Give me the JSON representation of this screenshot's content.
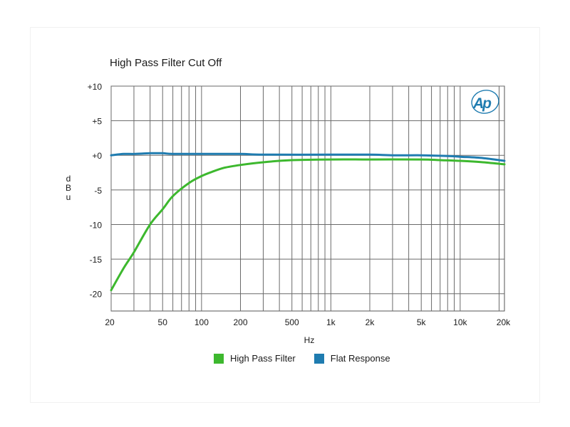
{
  "chart_data": {
    "type": "line",
    "title": "High Pass Filter Cut Off",
    "xlabel": "Hz",
    "ylabel": "dBu",
    "x_scale": "log",
    "xlim": [
      20,
      22000
    ],
    "ylim": [
      -22.5,
      10
    ],
    "x_ticks": [
      {
        "value": 20,
        "label": "20"
      },
      {
        "value": 50,
        "label": "50"
      },
      {
        "value": 100,
        "label": "100"
      },
      {
        "value": 200,
        "label": "200"
      },
      {
        "value": 500,
        "label": "500"
      },
      {
        "value": 1000,
        "label": "1k"
      },
      {
        "value": 2000,
        "label": "2k"
      },
      {
        "value": 5000,
        "label": "5k"
      },
      {
        "value": 10000,
        "label": "10k"
      },
      {
        "value": 20000,
        "label": "20k"
      }
    ],
    "y_ticks": [
      {
        "value": 10,
        "label": "+10"
      },
      {
        "value": 5,
        "label": "+5"
      },
      {
        "value": 0,
        "label": "+0"
      },
      {
        "value": -5,
        "label": "-5"
      },
      {
        "value": -10,
        "label": "-10"
      },
      {
        "value": -15,
        "label": "-15"
      },
      {
        "value": -20,
        "label": "-20"
      }
    ],
    "grid": true,
    "legend_position": "bottom",
    "series": [
      {
        "name": "High Pass Filter",
        "color": "#3db82e",
        "points": [
          [
            20,
            -19.5
          ],
          [
            25,
            -16.3
          ],
          [
            30,
            -14.0
          ],
          [
            40,
            -10.0
          ],
          [
            50,
            -7.8
          ],
          [
            60,
            -5.9
          ],
          [
            80,
            -4.0
          ],
          [
            100,
            -3.0
          ],
          [
            120,
            -2.4
          ],
          [
            150,
            -1.8
          ],
          [
            200,
            -1.4
          ],
          [
            300,
            -1.0
          ],
          [
            500,
            -0.7
          ],
          [
            1000,
            -0.6
          ],
          [
            2000,
            -0.6
          ],
          [
            5000,
            -0.6
          ],
          [
            7000,
            -0.7
          ],
          [
            10000,
            -0.8
          ],
          [
            15000,
            -1.0
          ],
          [
            22000,
            -1.3
          ]
        ]
      },
      {
        "name": "Flat Response",
        "color": "#1f7cb0",
        "points": [
          [
            20,
            0.0
          ],
          [
            25,
            0.2
          ],
          [
            30,
            0.2
          ],
          [
            40,
            0.3
          ],
          [
            50,
            0.3
          ],
          [
            60,
            0.2
          ],
          [
            100,
            0.2
          ],
          [
            200,
            0.2
          ],
          [
            300,
            0.1
          ],
          [
            1000,
            0.1
          ],
          [
            2000,
            0.1
          ],
          [
            3000,
            0.0
          ],
          [
            5000,
            0.0
          ],
          [
            8000,
            -0.1
          ],
          [
            10000,
            -0.2
          ],
          [
            15000,
            -0.4
          ],
          [
            22000,
            -0.8
          ]
        ]
      }
    ]
  },
  "logo_text": "AP",
  "logo_color": "#1f7cb0"
}
